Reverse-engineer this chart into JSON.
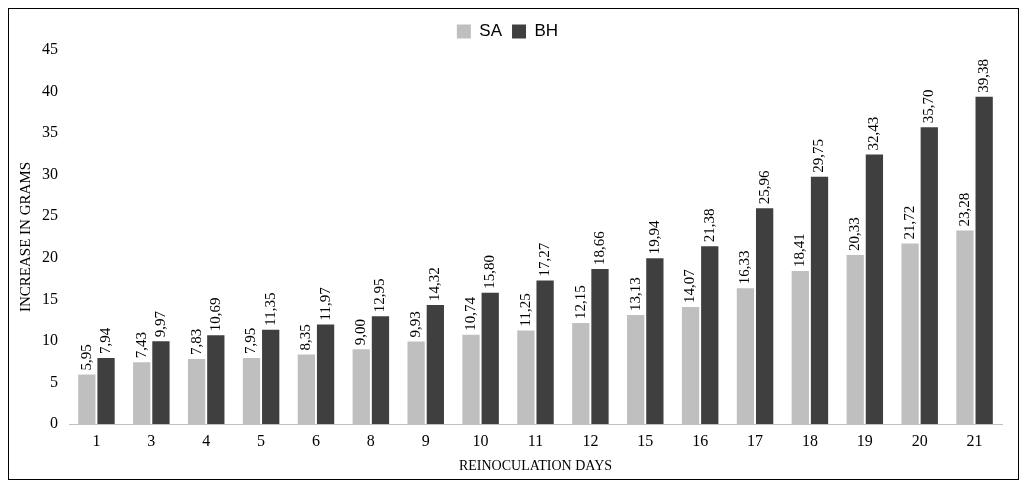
{
  "chart_data": {
    "type": "bar",
    "xlabel": "REINOCULATION DAYS",
    "ylabel": "INCREASE IN GRAMS",
    "categories": [
      "1",
      "3",
      "4",
      "5",
      "6",
      "8",
      "9",
      "10",
      "11",
      "12",
      "15",
      "16",
      "17",
      "18",
      "19",
      "20",
      "21"
    ],
    "series": [
      {
        "name": "SA",
        "color": "#bfbfbf",
        "values": [
          5.95,
          7.43,
          7.83,
          7.95,
          8.35,
          9.0,
          9.93,
          10.74,
          11.25,
          12.15,
          13.13,
          14.07,
          16.33,
          18.41,
          20.33,
          21.72,
          23.28
        ],
        "value_labels": [
          "5,95",
          "7,43",
          "7,83",
          "7,95",
          "8,35",
          "9,00",
          "9,93",
          "10,74",
          "11,25",
          "12,15",
          "13,13",
          "14,07",
          "16,33",
          "18,41",
          "20,33",
          "21,72",
          "23,28"
        ]
      },
      {
        "name": "BH",
        "color": "#3f3f3f",
        "values": [
          7.94,
          9.97,
          10.69,
          11.35,
          11.97,
          12.95,
          14.32,
          15.8,
          17.27,
          18.66,
          19.94,
          21.38,
          25.96,
          29.75,
          32.43,
          35.7,
          39.38
        ],
        "value_labels": [
          "7,94",
          "9,97",
          "10,69",
          "11,35",
          "11,97",
          "12,95",
          "14,32",
          "15,80",
          "17,27",
          "18,66",
          "19,94",
          "21,38",
          "25,96",
          "29,75",
          "32,43",
          "35,70",
          "39,38"
        ]
      }
    ],
    "ylim": [
      0,
      45
    ],
    "yticks": [
      0,
      5,
      10,
      15,
      20,
      25,
      30,
      35,
      40,
      45
    ],
    "grid": false,
    "legend": "top"
  }
}
